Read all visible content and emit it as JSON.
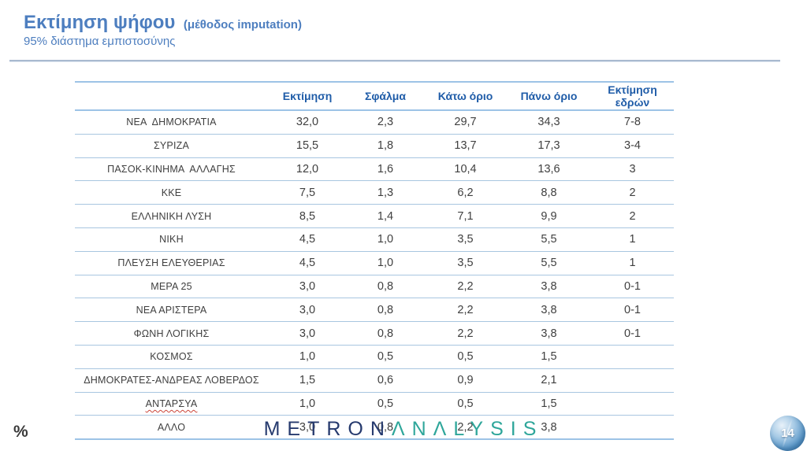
{
  "slide": {
    "title": "Εκτίμηση ψήφου",
    "title_suffix": "(μέθοδος imputation)",
    "subtitle": "95% διάστημα εμπιστοσύνης"
  },
  "table": {
    "columns": [
      "",
      "Εκτίμηση",
      "Σφάλμα",
      "Κάτω όριο",
      "Πάνω όριο",
      "Εκτίμηση εδρών"
    ],
    "rows": [
      {
        "name": "ΝΕΑ  ΔΗΜΟΚΡΑΤΙΑ",
        "values": [
          "32,0",
          "2,3",
          "29,7",
          "34,3",
          "7-8"
        ]
      },
      {
        "name": "ΣΥΡΙΖΑ",
        "values": [
          "15,5",
          "1,8",
          "13,7",
          "17,3",
          "3-4"
        ]
      },
      {
        "name": "ΠΑΣΟΚ-ΚΙΝΗΜΑ  ΑΛΛΑΓΗΣ",
        "values": [
          "12,0",
          "1,6",
          "10,4",
          "13,6",
          "3"
        ]
      },
      {
        "name": "ΚΚΕ",
        "values": [
          "7,5",
          "1,3",
          "6,2",
          "8,8",
          "2"
        ]
      },
      {
        "name": "ΕΛΛΗΝΙΚΗ ΛΥΣΗ",
        "values": [
          "8,5",
          "1,4",
          "7,1",
          "9,9",
          "2"
        ]
      },
      {
        "name": "ΝΙΚΗ",
        "values": [
          "4,5",
          "1,0",
          "3,5",
          "5,5",
          "1"
        ]
      },
      {
        "name": "ΠΛΕΥΣΗ ΕΛΕΥΘΕΡΙΑΣ",
        "values": [
          "4,5",
          "1,0",
          "3,5",
          "5,5",
          "1"
        ]
      },
      {
        "name": "ΜΕΡΑ 25",
        "values": [
          "3,0",
          "0,8",
          "2,2",
          "3,8",
          "0-1"
        ]
      },
      {
        "name": "ΝΕΑ ΑΡΙΣΤΕΡΑ",
        "values": [
          "3,0",
          "0,8",
          "2,2",
          "3,8",
          "0-1"
        ]
      },
      {
        "name": "ΦΩΝΗ ΛΟΓΙΚΗΣ",
        "values": [
          "3,0",
          "0,8",
          "2,2",
          "3,8",
          "0-1"
        ]
      },
      {
        "name": "ΚΟΣΜΟΣ",
        "values": [
          "1,0",
          "0,5",
          "0,5",
          "1,5",
          ""
        ]
      },
      {
        "name": "ΔΗΜΟΚΡΑΤΕΣ-ΑΝΔΡΕΑΣ ΛΟΒΕΡΔΟΣ",
        "values": [
          "1,5",
          "0,6",
          "0,9",
          "2,1",
          ""
        ]
      },
      {
        "name": "ΑΝΤΑΡΣΥΑ",
        "spellcheck_underline": true,
        "values": [
          "1,0",
          "0,5",
          "0,5",
          "1,5",
          ""
        ]
      },
      {
        "name": "ΑΛΛΟ",
        "values": [
          "3,0",
          "0,8",
          "2,2",
          "3,8",
          ""
        ]
      }
    ]
  },
  "footer": {
    "percent_symbol": "%",
    "logo_metron": "METRON",
    "logo_analysis": "ΛNΛLYSIS",
    "page_number": "14"
  },
  "colors": {
    "title_blue": "#4d7ebf",
    "table_header_blue": "#1f5ca8",
    "body_text": "#3f3f3f",
    "row_separator_blue": "#a8c6e0",
    "table_border_blue": "#9dc3e6",
    "logo_navy": "#263a6e",
    "logo_teal": "#2ea69a",
    "spellcheck_red": "#cc4438",
    "page_circle_blue": "#5a97c8"
  }
}
